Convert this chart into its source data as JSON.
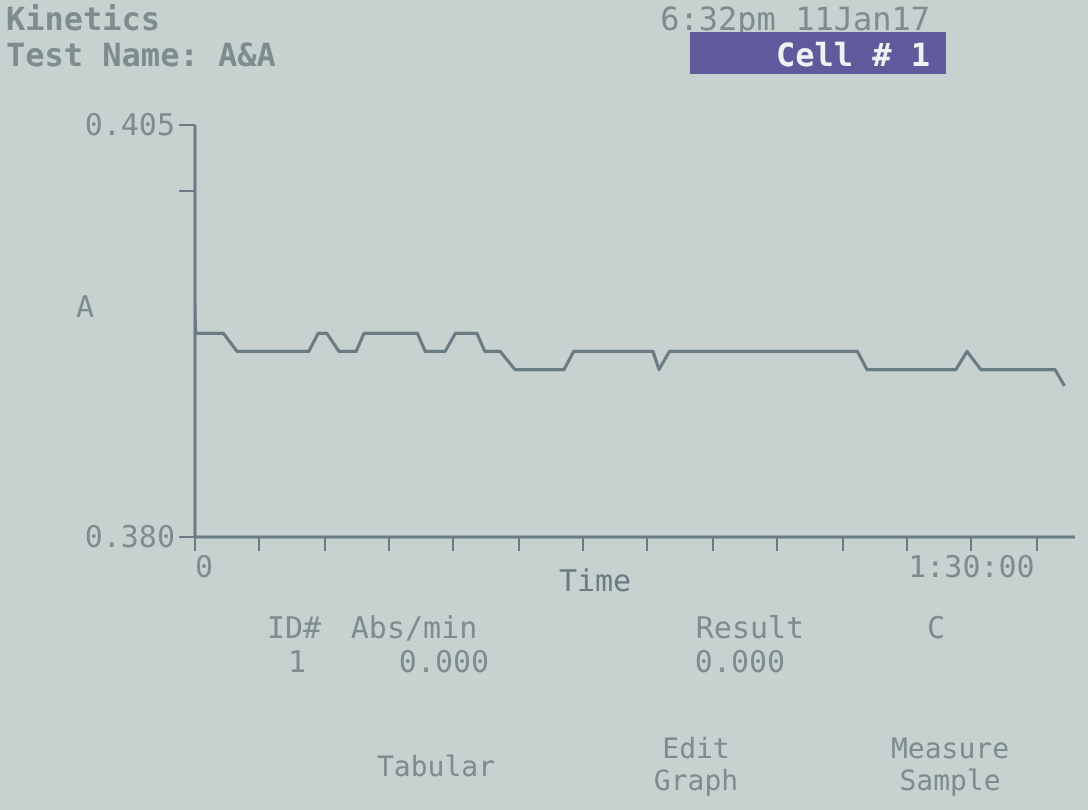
{
  "chart_data": {
    "type": "line",
    "title": "Kinetics",
    "subtitle": "Test Name: A&A",
    "xlabel": "Time",
    "ylabel": "A",
    "x": [
      0,
      0.2,
      3.4,
      5.0,
      13.3,
      14.4,
      15.4,
      16.8,
      18.8,
      19.7,
      25.9,
      26.8,
      29.1,
      30.3,
      32.8,
      33.7,
      35.5,
      37.2,
      42.9,
      44.0,
      53.2,
      53.9,
      55.1,
      76.9,
      78.0,
      88.3,
      89.6,
      91.2,
      99.8,
      100.9
    ],
    "series": [
      {
        "color": "#6a7b84",
        "values": [
          0.3949,
          0.3923,
          0.3923,
          0.3912,
          0.3912,
          0.3923,
          0.3923,
          0.3912,
          0.3912,
          0.3923,
          0.3923,
          0.3912,
          0.3912,
          0.3923,
          0.3923,
          0.3912,
          0.3912,
          0.3901,
          0.3901,
          0.3912,
          0.3912,
          0.3901,
          0.3912,
          0.3912,
          0.3901,
          0.3901,
          0.3912,
          0.3901,
          0.3901,
          0.3891
        ]
      }
    ],
    "xlim": [
      0,
      102
    ],
    "xticks": [
      0,
      {
        "value": 7.5,
        "label": null
      },
      {
        "value": 15,
        "label": null
      },
      {
        "value": 22.5,
        "label": null
      },
      {
        "value": 30,
        "label": null
      },
      {
        "value": 37.5,
        "label": null
      },
      {
        "value": 45,
        "label": null
      },
      {
        "value": 52.5,
        "label": null
      },
      {
        "value": 60,
        "label": null
      },
      {
        "value": 67.5,
        "label": null
      },
      {
        "value": 75,
        "label": null
      },
      {
        "value": 82.5,
        "label": null
      },
      {
        "value": 90,
        "label": "1:30:00"
      },
      {
        "value": 97.5,
        "label": null
      }
    ],
    "ylim": [
      0.38,
      0.405
    ],
    "yticks": [
      {
        "value": 0.38,
        "label": "0.380"
      },
      {
        "value": 0.401,
        "label": null
      },
      0.405
    ],
    "grid": false,
    "marker": "none",
    "line_style": "solid",
    "annotations": [
      "6:32pm 11Jan17",
      "Cell # 1",
      "ID#",
      "Abs/min",
      "Result",
      "C",
      "1",
      "0.000",
      "0.000",
      "Tabular",
      "Edit Graph",
      "Measure Sample"
    ]
  }
}
